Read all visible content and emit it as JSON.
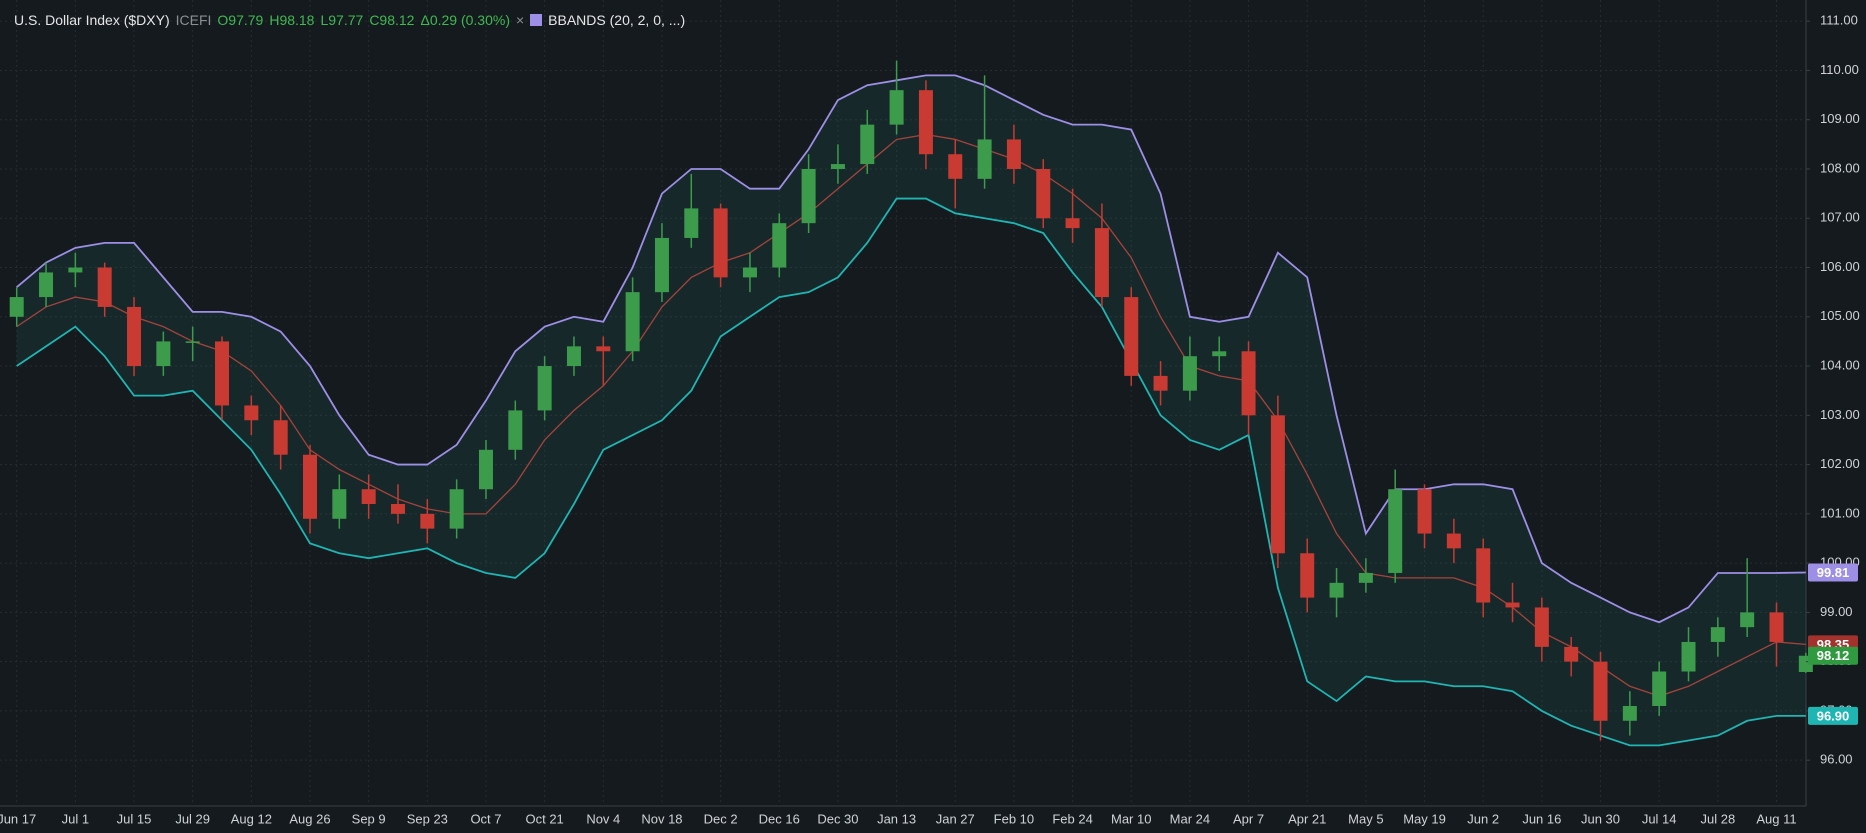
{
  "chart_data": {
    "type": "candlestick",
    "title": "U.S. Dollar Index ($DXY)",
    "exchange": "ICEFI",
    "quote_labels": [
      "O97.79",
      "H98.18",
      "L97.77",
      "C98.12",
      "Δ0.29 (0.30%)"
    ],
    "close_indicator": "×",
    "indicator": "BBANDS (20, 2, 0, ...)",
    "indicator_color": "#9d8fe6",
    "categories": [
      "Jun 17",
      null,
      "Jul 1",
      null,
      "Jul 15",
      null,
      "Jul 29",
      null,
      "Aug 12",
      null,
      "Aug 26",
      null,
      "Sep 9",
      null,
      "Sep 23",
      null,
      "Oct 7",
      null,
      "Oct 21",
      null,
      "Nov 4",
      null,
      "Nov 18",
      null,
      "Dec 2",
      null,
      "Dec 16",
      null,
      "Dec 30",
      null,
      "Jan 13",
      null,
      "Jan 27",
      null,
      "Feb 10",
      null,
      "Feb 24",
      null,
      "Mar 10",
      null,
      "Mar 24",
      null,
      "Apr 7",
      null,
      "Apr 21",
      null,
      "May 5",
      null,
      "May 19",
      null,
      "Jun 2",
      null,
      "Jun 16",
      null,
      "Jun 30",
      null,
      "Jul 14",
      null,
      "Jul 28",
      null,
      "Aug 11",
      null
    ],
    "ohlc": [
      [
        105.0,
        105.6,
        104.8,
        105.4
      ],
      [
        105.4,
        106.1,
        105.2,
        105.9
      ],
      [
        105.9,
        106.3,
        105.6,
        106.0
      ],
      [
        106.0,
        106.1,
        105.0,
        105.2
      ],
      [
        105.2,
        105.4,
        103.8,
        104.0
      ],
      [
        104.0,
        104.7,
        103.8,
        104.5
      ],
      [
        104.5,
        104.8,
        104.1,
        104.5
      ],
      [
        104.5,
        104.6,
        102.9,
        103.2
      ],
      [
        103.2,
        103.4,
        102.6,
        102.9
      ],
      [
        102.9,
        103.2,
        101.9,
        102.2
      ],
      [
        102.2,
        102.4,
        100.6,
        100.9
      ],
      [
        100.9,
        101.8,
        100.7,
        101.5
      ],
      [
        101.5,
        101.8,
        100.9,
        101.2
      ],
      [
        101.2,
        101.6,
        100.8,
        101.0
      ],
      [
        101.0,
        101.3,
        100.4,
        100.7
      ],
      [
        100.7,
        101.7,
        100.5,
        101.5
      ],
      [
        101.5,
        102.5,
        101.3,
        102.3
      ],
      [
        102.3,
        103.3,
        102.1,
        103.1
      ],
      [
        103.1,
        104.2,
        102.9,
        104.0
      ],
      [
        104.0,
        104.6,
        103.8,
        104.4
      ],
      [
        104.4,
        104.6,
        103.6,
        104.3
      ],
      [
        104.3,
        105.8,
        104.1,
        105.5
      ],
      [
        105.5,
        106.9,
        105.3,
        106.6
      ],
      [
        106.6,
        107.9,
        106.4,
        107.2
      ],
      [
        107.2,
        107.3,
        105.6,
        105.8
      ],
      [
        105.8,
        106.3,
        105.5,
        106.0
      ],
      [
        106.0,
        107.1,
        105.8,
        106.9
      ],
      [
        106.9,
        108.3,
        106.7,
        108.0
      ],
      [
        108.0,
        108.5,
        107.7,
        108.1
      ],
      [
        108.1,
        109.2,
        107.9,
        108.9
      ],
      [
        108.9,
        110.2,
        108.7,
        109.6
      ],
      [
        109.6,
        109.8,
        108.0,
        108.3
      ],
      [
        108.3,
        108.6,
        107.2,
        107.8
      ],
      [
        107.8,
        109.9,
        107.6,
        108.6
      ],
      [
        108.6,
        108.9,
        107.7,
        108.0
      ],
      [
        108.0,
        108.2,
        106.8,
        107.0
      ],
      [
        107.0,
        107.6,
        106.5,
        106.8
      ],
      [
        106.8,
        107.3,
        105.2,
        105.4
      ],
      [
        105.4,
        105.6,
        103.6,
        103.8
      ],
      [
        103.8,
        104.1,
        103.2,
        103.5
      ],
      [
        103.5,
        104.6,
        103.3,
        104.2
      ],
      [
        104.2,
        104.6,
        103.9,
        104.3
      ],
      [
        104.3,
        104.5,
        102.6,
        103.0
      ],
      [
        103.0,
        103.4,
        99.9,
        100.2
      ],
      [
        100.2,
        100.5,
        99.0,
        99.3
      ],
      [
        99.3,
        99.9,
        98.9,
        99.6
      ],
      [
        99.6,
        100.1,
        99.4,
        99.8
      ],
      [
        99.8,
        101.9,
        99.6,
        101.5
      ],
      [
        101.5,
        101.6,
        100.3,
        100.6
      ],
      [
        100.6,
        100.9,
        100.0,
        100.3
      ],
      [
        100.3,
        100.5,
        98.9,
        99.2
      ],
      [
        99.2,
        99.6,
        98.8,
        99.1
      ],
      [
        99.1,
        99.3,
        98.0,
        98.3
      ],
      [
        98.3,
        98.5,
        97.7,
        98.0
      ],
      [
        98.0,
        98.2,
        96.4,
        96.8
      ],
      [
        96.8,
        97.4,
        96.5,
        97.1
      ],
      [
        97.1,
        98.0,
        96.9,
        97.8
      ],
      [
        97.8,
        98.7,
        97.6,
        98.4
      ],
      [
        98.4,
        98.9,
        98.1,
        98.7
      ],
      [
        98.7,
        100.1,
        98.5,
        99.0
      ],
      [
        99.0,
        99.2,
        97.9,
        98.4
      ],
      [
        97.79,
        98.18,
        97.77,
        98.12
      ]
    ],
    "up_color": "#3c9c4c",
    "down_color": "#c83a32",
    "series": [
      {
        "name": "upper",
        "color": "#9d8fe6",
        "values": [
          105.6,
          106.1,
          106.4,
          106.5,
          106.5,
          105.8,
          105.1,
          105.1,
          105.0,
          104.7,
          104.0,
          103.0,
          102.2,
          102.0,
          102.0,
          102.4,
          103.3,
          104.3,
          104.8,
          105.0,
          104.9,
          106.0,
          107.5,
          108.0,
          108.0,
          107.6,
          107.6,
          108.4,
          109.4,
          109.7,
          109.8,
          109.9,
          109.9,
          109.7,
          109.4,
          109.1,
          108.9,
          108.9,
          108.8,
          107.5,
          105.0,
          104.9,
          105.0,
          106.3,
          105.8,
          103.0,
          100.6,
          101.5,
          101.5,
          101.6,
          101.6,
          101.5,
          100.0,
          99.6,
          99.3,
          99.0,
          98.8,
          99.1,
          99.8,
          99.8,
          99.8,
          99.81
        ]
      },
      {
        "name": "middle",
        "color": "#a3443c",
        "values": [
          104.8,
          105.2,
          105.4,
          105.3,
          105.0,
          104.8,
          104.5,
          104.3,
          103.9,
          103.2,
          102.3,
          101.9,
          101.6,
          101.3,
          101.1,
          101.0,
          101.0,
          101.6,
          102.5,
          103.1,
          103.6,
          104.3,
          105.2,
          105.8,
          106.1,
          106.3,
          106.7,
          107.1,
          107.6,
          108.1,
          108.6,
          108.7,
          108.6,
          108.4,
          108.2,
          107.9,
          107.5,
          107.0,
          106.2,
          105.0,
          104.0,
          103.8,
          103.7,
          102.9,
          101.8,
          100.6,
          99.8,
          99.7,
          99.7,
          99.7,
          99.5,
          99.1,
          98.6,
          98.3,
          97.9,
          97.5,
          97.3,
          97.5,
          97.8,
          98.1,
          98.4,
          98.35
        ]
      },
      {
        "name": "lower",
        "color": "#1fb5b3",
        "values": [
          104.0,
          104.4,
          104.8,
          104.2,
          103.4,
          103.4,
          103.5,
          102.9,
          102.3,
          101.4,
          100.4,
          100.2,
          100.1,
          100.2,
          100.3,
          100.0,
          99.8,
          99.7,
          100.2,
          101.2,
          102.3,
          102.6,
          102.9,
          103.5,
          104.6,
          105.0,
          105.4,
          105.5,
          105.8,
          106.5,
          107.4,
          107.4,
          107.1,
          107.0,
          106.9,
          106.7,
          105.9,
          105.2,
          104.1,
          103.0,
          102.5,
          102.3,
          102.6,
          99.5,
          97.6,
          97.2,
          97.7,
          97.6,
          97.6,
          97.5,
          97.5,
          97.4,
          97.0,
          96.7,
          96.5,
          96.3,
          96.3,
          96.4,
          96.5,
          96.8,
          96.9,
          96.9
        ]
      }
    ],
    "band_fill": "rgba(34,130,120,0.14)",
    "price_tags": [
      {
        "value": 99.81,
        "label": "99.81",
        "color": "#9d8fe6"
      },
      {
        "value": 98.35,
        "label": "98.35",
        "color": "#a3322c"
      },
      {
        "value": 96.9,
        "label": "96.90",
        "color": "#1fb5b3"
      },
      {
        "value": 98.12,
        "label": "98.12",
        "color": "#2f9a40"
      }
    ],
    "ylim": [
      95.07,
      111.43
    ],
    "yticks": [
      {
        "value": 96,
        "label": "96.00"
      },
      {
        "value": 97,
        "label": "97.00"
      },
      {
        "value": 98,
        "label": "98.00"
      },
      {
        "value": 99,
        "label": "99.00"
      },
      {
        "value": 100,
        "label": "100.00"
      },
      {
        "value": 101,
        "label": "101.00"
      },
      {
        "value": 102,
        "label": "102.00"
      },
      {
        "value": 103,
        "label": "103.00"
      },
      {
        "value": 104,
        "label": "104.00"
      },
      {
        "value": 105,
        "label": "105.00"
      },
      {
        "value": 106,
        "label": "106.00"
      },
      {
        "value": 107,
        "label": "107.00"
      },
      {
        "value": 108,
        "label": "108.00"
      },
      {
        "value": 109,
        "label": "109.00"
      },
      {
        "value": 110,
        "label": "110.00"
      },
      {
        "value": 111,
        "label": "111.00"
      }
    ],
    "grid": true
  }
}
